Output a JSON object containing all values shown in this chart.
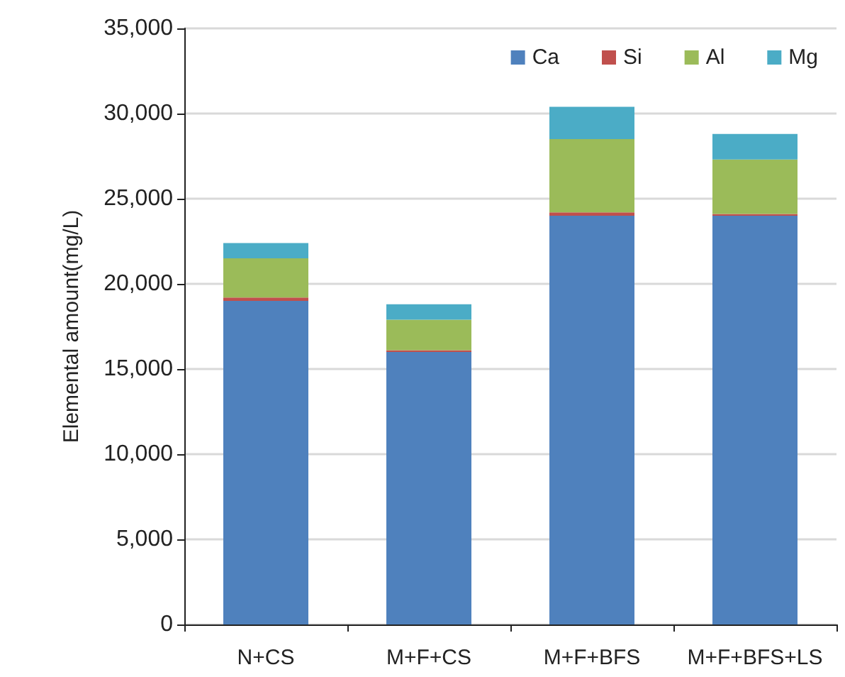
{
  "chart_data": {
    "type": "bar",
    "stacked": true,
    "ylabel": "Elemental amount(mg/L)",
    "categories": [
      "N+CS",
      "M+F+CS",
      "M+F+BFS",
      "M+F+BFS+LS"
    ],
    "series": [
      {
        "name": "Ca",
        "color": "#4f81bd",
        "values": [
          19000,
          16000,
          24000,
          24000
        ]
      },
      {
        "name": "Si",
        "color": "#c0504d",
        "values": [
          200,
          100,
          200,
          100
        ]
      },
      {
        "name": "Al",
        "color": "#9bbb59",
        "values": [
          2300,
          1800,
          4300,
          3200
        ]
      },
      {
        "name": "Mg",
        "color": "#4bacc6",
        "values": [
          900,
          900,
          1900,
          1500
        ]
      }
    ],
    "ylim": [
      0,
      35000
    ],
    "yticks": [
      0,
      {
        "value": 5000,
        "label": "5,000"
      },
      {
        "value": 10000,
        "label": "10,000"
      },
      {
        "value": 15000,
        "label": "15,000"
      },
      {
        "value": 20000,
        "label": "20,000"
      },
      {
        "value": 25000,
        "label": "25,000"
      },
      {
        "value": 30000,
        "label": "30,000"
      },
      {
        "value": 35000,
        "label": "35,000"
      }
    ],
    "grid": "y",
    "legend": "top right"
  }
}
